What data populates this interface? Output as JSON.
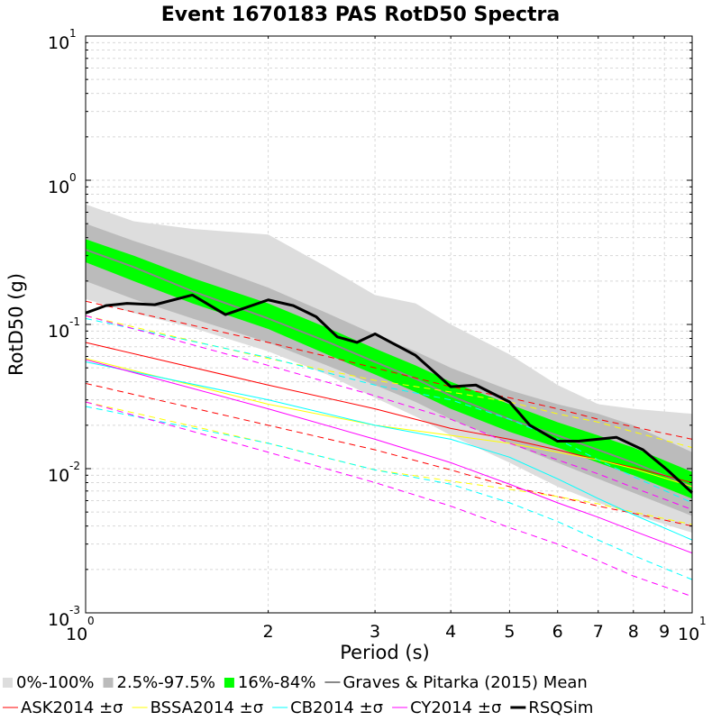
{
  "chart_data": {
    "type": "line",
    "title": "Event 1670183 PAS RotD50 Spectra",
    "xlabel": "Period (s)",
    "ylabel": "RotD50 (g)",
    "x_scale": "log",
    "y_scale": "log",
    "xlim": [
      1,
      10
    ],
    "ylim": [
      0.001,
      10
    ],
    "grid": true,
    "legend_position": "bottom",
    "x_tick_labels": [
      {
        "value": 1,
        "base": "10",
        "exp": "0"
      },
      {
        "value": 2,
        "label": "2"
      },
      {
        "value": 3,
        "label": "3"
      },
      {
        "value": 4,
        "label": "4"
      },
      {
        "value": 5,
        "label": "5"
      },
      {
        "value": 6,
        "label": "6"
      },
      {
        "value": 7,
        "label": "7"
      },
      {
        "value": 8,
        "label": "8"
      },
      {
        "value": 9,
        "label": "9"
      },
      {
        "value": 10,
        "base": "10",
        "exp": "1"
      }
    ],
    "y_tick_labels": [
      {
        "value": 0.001,
        "base": "10",
        "exp": "-3"
      },
      {
        "value": 0.01,
        "base": "10",
        "exp": "-2"
      },
      {
        "value": 0.1,
        "base": "10",
        "exp": "-1"
      },
      {
        "value": 1,
        "base": "10",
        "exp": "0"
      },
      {
        "value": 10,
        "base": "10",
        "exp": "1"
      }
    ],
    "bands": [
      {
        "name": "0%-100%",
        "color": "#dddddd",
        "x": [
          1,
          1.2,
          1.5,
          2,
          2.5,
          3,
          3.5,
          4,
          5,
          6,
          7,
          8,
          10
        ],
        "upper": [
          0.68,
          0.52,
          0.46,
          0.42,
          0.25,
          0.16,
          0.14,
          0.1,
          0.062,
          0.038,
          0.028,
          0.026,
          0.024
        ],
        "lower": [
          0.15,
          0.12,
          0.095,
          0.065,
          0.045,
          0.031,
          0.023,
          0.017,
          0.011,
          0.0075,
          0.0058,
          0.0048,
          0.0036
        ]
      },
      {
        "name": "2.5%-97.5%",
        "color": "#bbbbbb",
        "x": [
          1,
          1.2,
          1.5,
          2,
          2.5,
          3,
          3.5,
          4,
          5,
          6,
          7,
          8,
          10
        ],
        "upper": [
          0.5,
          0.38,
          0.28,
          0.18,
          0.12,
          0.085,
          0.065,
          0.05,
          0.035,
          0.028,
          0.024,
          0.02,
          0.013
        ],
        "lower": [
          0.2,
          0.15,
          0.11,
          0.075,
          0.052,
          0.038,
          0.029,
          0.022,
          0.015,
          0.011,
          0.0085,
          0.0068,
          0.0047
        ]
      },
      {
        "name": "16%-84%",
        "color": "#00ff00",
        "x": [
          1,
          1.2,
          1.5,
          2,
          2.5,
          3,
          3.5,
          4,
          5,
          6,
          7,
          8,
          10
        ],
        "upper": [
          0.39,
          0.3,
          0.21,
          0.14,
          0.095,
          0.068,
          0.052,
          0.04,
          0.028,
          0.021,
          0.017,
          0.014,
          0.0095
        ],
        "lower": [
          0.27,
          0.2,
          0.14,
          0.093,
          0.062,
          0.045,
          0.034,
          0.026,
          0.018,
          0.014,
          0.011,
          0.009,
          0.0062
        ]
      }
    ],
    "series": [
      {
        "name": "Graves & Pitarka (2015) Mean",
        "color": "#888888",
        "width": 2,
        "dash": false,
        "x": [
          1,
          1.2,
          1.5,
          2,
          2.5,
          3,
          3.5,
          4,
          5,
          6,
          7,
          8,
          10
        ],
        "y": [
          0.33,
          0.25,
          0.17,
          0.11,
          0.076,
          0.055,
          0.042,
          0.032,
          0.022,
          0.017,
          0.0135,
          0.011,
          0.0075
        ]
      },
      {
        "name": "ASK2014",
        "color": "#ff0000",
        "width": 1,
        "dash": false,
        "x": [
          1,
          2,
          3,
          4,
          5,
          6,
          7,
          8,
          10
        ],
        "y": [
          0.075,
          0.038,
          0.026,
          0.019,
          0.016,
          0.0135,
          0.0115,
          0.0102,
          0.008
        ]
      },
      {
        "name": "ASK2014 +σ",
        "color": "#ff0000",
        "width": 1,
        "dash": true,
        "legend": false,
        "x": [
          1,
          2,
          3,
          4,
          5,
          6,
          7,
          8,
          10
        ],
        "y": [
          0.145,
          0.075,
          0.05,
          0.037,
          0.031,
          0.026,
          0.022,
          0.0195,
          0.016
        ]
      },
      {
        "name": "ASK2014 -σ",
        "color": "#ff0000",
        "width": 1,
        "dash": true,
        "legend": false,
        "x": [
          1,
          2,
          3,
          4,
          5,
          6,
          7,
          8,
          10
        ],
        "y": [
          0.039,
          0.02,
          0.0135,
          0.0098,
          0.0075,
          0.0064,
          0.0055,
          0.0049,
          0.004
        ]
      },
      {
        "name": "BSSA2014",
        "color": "#ffff00",
        "width": 1,
        "dash": false,
        "x": [
          1,
          2,
          3,
          4,
          5,
          6,
          7,
          8,
          10
        ],
        "y": [
          0.058,
          0.028,
          0.02,
          0.017,
          0.015,
          0.013,
          0.0115,
          0.01,
          0.0075
        ]
      },
      {
        "name": "BSSA2014 +σ",
        "color": "#ffff00",
        "width": 1,
        "dash": true,
        "legend": false,
        "x": [
          1,
          2,
          3,
          4,
          5,
          6,
          7,
          8,
          10
        ],
        "y": [
          0.115,
          0.058,
          0.041,
          0.034,
          0.029,
          0.024,
          0.021,
          0.018,
          0.014
        ]
      },
      {
        "name": "BSSA2014 -σ",
        "color": "#ffff00",
        "width": 1,
        "dash": true,
        "legend": false,
        "x": [
          1,
          2,
          3,
          4,
          5,
          6,
          7,
          8,
          10
        ],
        "y": [
          0.029,
          0.015,
          0.0098,
          0.0082,
          0.0072,
          0.0064,
          0.0057,
          0.005,
          0.0041
        ]
      },
      {
        "name": "CB2014",
        "color": "#00ffff",
        "width": 1,
        "dash": false,
        "x": [
          1,
          2,
          3,
          4,
          5,
          6,
          7,
          8,
          10
        ],
        "y": [
          0.055,
          0.03,
          0.02,
          0.016,
          0.012,
          0.0085,
          0.0062,
          0.0048,
          0.0032
        ]
      },
      {
        "name": "CB2014 +σ",
        "color": "#00ffff",
        "width": 1,
        "dash": true,
        "legend": false,
        "x": [
          1,
          2,
          3,
          4,
          5,
          6,
          7,
          8,
          10
        ],
        "y": [
          0.11,
          0.059,
          0.038,
          0.03,
          0.022,
          0.016,
          0.0115,
          0.0088,
          0.0058
        ]
      },
      {
        "name": "CB2014 -σ",
        "color": "#00ffff",
        "width": 1,
        "dash": true,
        "legend": false,
        "x": [
          1,
          2,
          3,
          4,
          5,
          6,
          7,
          8,
          10
        ],
        "y": [
          0.027,
          0.015,
          0.0098,
          0.0078,
          0.0058,
          0.0043,
          0.0032,
          0.0025,
          0.0017
        ]
      },
      {
        "name": "CY2014",
        "color": "#ff00ff",
        "width": 1,
        "dash": false,
        "x": [
          1,
          2,
          3,
          4,
          5,
          6,
          7,
          8,
          10
        ],
        "y": [
          0.057,
          0.026,
          0.016,
          0.011,
          0.0078,
          0.0058,
          0.0046,
          0.0037,
          0.0026
        ]
      },
      {
        "name": "CY2014 +σ",
        "color": "#ff00ff",
        "width": 1,
        "dash": true,
        "legend": false,
        "x": [
          1,
          2,
          3,
          4,
          5,
          6,
          7,
          8,
          10
        ],
        "y": [
          0.115,
          0.052,
          0.032,
          0.022,
          0.015,
          0.0115,
          0.0092,
          0.0074,
          0.0052
        ]
      },
      {
        "name": "CY2014 -σ",
        "color": "#ff00ff",
        "width": 1,
        "dash": true,
        "legend": false,
        "x": [
          1,
          2,
          3,
          4,
          5,
          6,
          7,
          8,
          10
        ],
        "y": [
          0.029,
          0.013,
          0.008,
          0.0055,
          0.0039,
          0.003,
          0.0023,
          0.0018,
          0.0013
        ]
      },
      {
        "name": "RSQSim",
        "color": "#000000",
        "width": 3,
        "dash": false,
        "x": [
          1,
          1.08,
          1.17,
          1.3,
          1.5,
          1.7,
          2.0,
          2.2,
          2.4,
          2.6,
          2.8,
          3.0,
          3.5,
          4.0,
          4.4,
          5.0,
          5.4,
          6.0,
          6.5,
          7.5,
          8.3,
          9.1,
          10
        ],
        "y": [
          0.12,
          0.135,
          0.14,
          0.137,
          0.16,
          0.117,
          0.148,
          0.135,
          0.113,
          0.082,
          0.075,
          0.086,
          0.061,
          0.037,
          0.038,
          0.029,
          0.02,
          0.0155,
          0.0155,
          0.0165,
          0.0135,
          0.0098,
          0.0068
        ]
      }
    ],
    "legend": {
      "row1": [
        {
          "label": "0%-100%",
          "color": "#dddddd",
          "kind": "box"
        },
        {
          "label": "2.5%-97.5%",
          "color": "#bbbbbb",
          "kind": "box"
        },
        {
          "label": "16%-84%",
          "color": "#00ff00",
          "kind": "box"
        },
        {
          "label": "Graves & Pitarka (2015) Mean",
          "color": "#888888",
          "kind": "line"
        }
      ],
      "row2": [
        {
          "label": "ASK2014 ±σ",
          "color": "#ff0000",
          "kind": "line"
        },
        {
          "label": "BSSA2014 ±σ",
          "color": "#ffff00",
          "kind": "line"
        },
        {
          "label": "CB2014 ±σ",
          "color": "#00ffff",
          "kind": "line"
        },
        {
          "label": "CY2014 ±σ",
          "color": "#ff00ff",
          "kind": "line"
        },
        {
          "label": "RSQSim",
          "color": "#000000",
          "kind": "thickline"
        }
      ]
    }
  }
}
